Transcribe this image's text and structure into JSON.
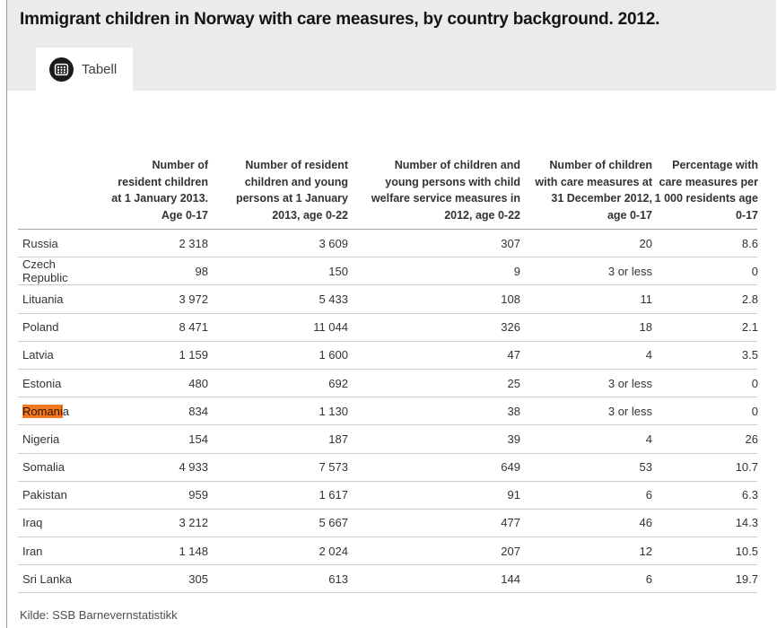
{
  "ui": {
    "tab": {
      "label": "Tabell",
      "icon": "table-grid-icon"
    }
  },
  "colors": {
    "search_highlight": "#f47920",
    "header_band": "#ebebeb",
    "header_rule": "#a3a3a3",
    "row_rule": "#cccccc"
  },
  "chart_data": {
    "type": "table",
    "title": "Immigrant children in Norway with care measures, by country background. 2012.",
    "source": "Kilde: SSB Barnevernstatistikk",
    "columns": [
      "",
      "Number of\nresident children\nat 1 January 2013.\nAge 0-17",
      "Number of resident\nchildren and young\npersons at 1 January\n2013, age 0-22",
      "Number of children and\nyoung persons with child\nwelfare service measures in\n2012, age 0-22",
      "Number of children\nwith care measures at\n31 December 2012,\nage 0-17",
      "Percentage with\ncare measures per\n1 000 residents age\n0-17"
    ],
    "rows": [
      {
        "country": "Russia",
        "values": [
          "2 318",
          "3 609",
          "307",
          "20",
          "8.6"
        ]
      },
      {
        "country": "Czech Republic",
        "values": [
          "98",
          "150",
          "9",
          "3 or less",
          "0"
        ]
      },
      {
        "country": "Lituania",
        "values": [
          "3 972",
          "5 433",
          "108",
          "11",
          "2.8"
        ]
      },
      {
        "country": "Poland",
        "values": [
          "8 471",
          "11 044",
          "326",
          "18",
          "2.1"
        ]
      },
      {
        "country": "Latvia",
        "values": [
          "1 159",
          "1 600",
          "47",
          "4",
          "3.5"
        ]
      },
      {
        "country": "Estonia",
        "values": [
          "480",
          "692",
          "25",
          "3 or less",
          "0"
        ]
      },
      {
        "country": "Romania",
        "country_parts": [
          {
            "text": "Romani",
            "highlight": true
          },
          {
            "text": "a",
            "highlight": false
          }
        ],
        "values": [
          "834",
          "1 130",
          "38",
          "3 or less",
          "0"
        ]
      },
      {
        "country": "Nigeria",
        "values": [
          "154",
          "187",
          "39",
          "4",
          "26"
        ]
      },
      {
        "country": "Somalia",
        "values": [
          "4 933",
          "7 573",
          "649",
          "53",
          "10.7"
        ]
      },
      {
        "country": "Pakistan",
        "values": [
          "959",
          "1 617",
          "91",
          "6",
          "6.3"
        ]
      },
      {
        "country": "Iraq",
        "values": [
          "3 212",
          "5 667",
          "477",
          "46",
          "14.3"
        ]
      },
      {
        "country": "Iran",
        "values": [
          "1 148",
          "2 024",
          "207",
          "12",
          "10.5"
        ]
      },
      {
        "country": "Sri Lanka",
        "values": [
          "305",
          "613",
          "144",
          "6",
          "19.7"
        ]
      }
    ]
  }
}
